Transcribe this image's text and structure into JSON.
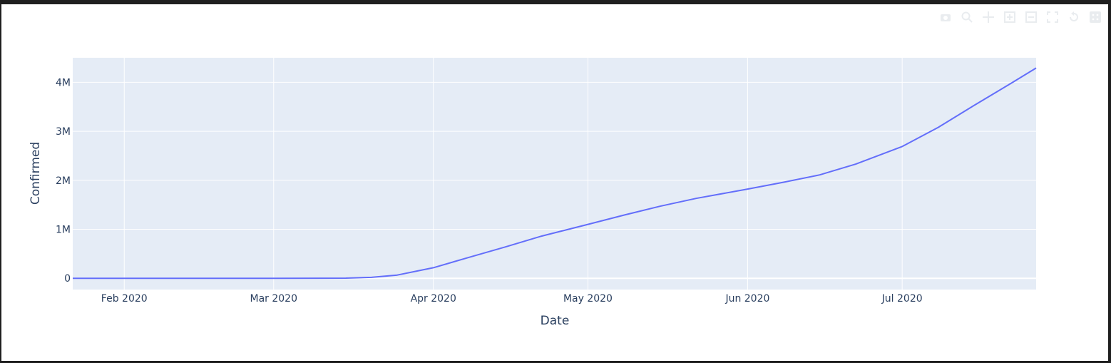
{
  "toolbar": {
    "icons": [
      "camera-icon",
      "zoom-icon",
      "pan-icon",
      "zoom-in-icon",
      "zoom-out-icon",
      "autoscale-icon",
      "reset-axes-icon",
      "plotly-logo-icon"
    ]
  },
  "chart_data": {
    "type": "line",
    "title": "",
    "xlabel": "Date",
    "ylabel": "Confirmed",
    "xlim": [
      "2020-01-22",
      "2020-07-27"
    ],
    "ylim": [
      -230000,
      4500000
    ],
    "x_ticks": [
      {
        "date": "2020-02-01",
        "label": "Feb 2020"
      },
      {
        "date": "2020-03-01",
        "label": "Mar 2020"
      },
      {
        "date": "2020-04-01",
        "label": "Apr 2020"
      },
      {
        "date": "2020-05-01",
        "label": "May 2020"
      },
      {
        "date": "2020-06-01",
        "label": "Jun 2020"
      },
      {
        "date": "2020-07-01",
        "label": "Jul 2020"
      }
    ],
    "y_ticks": [
      {
        "value": 0,
        "label": "0"
      },
      {
        "value": 1000000,
        "label": "1M"
      },
      {
        "value": 2000000,
        "label": "2M"
      },
      {
        "value": 3000000,
        "label": "3M"
      },
      {
        "value": 4000000,
        "label": "4M"
      }
    ],
    "grid": true,
    "colors": {
      "line": "#636efa",
      "plot_bg": "#e5ecf6",
      "grid": "#ffffff",
      "zero_line": "#ffffff",
      "text": "#2a3f5f"
    },
    "series": [
      {
        "x": [
          "2020-01-22",
          "2020-02-01",
          "2020-02-15",
          "2020-03-01",
          "2020-03-10",
          "2020-03-15",
          "2020-03-20",
          "2020-03-25",
          "2020-04-01",
          "2020-04-08",
          "2020-04-15",
          "2020-04-22",
          "2020-05-01",
          "2020-05-08",
          "2020-05-15",
          "2020-05-22",
          "2020-06-01",
          "2020-06-08",
          "2020-06-15",
          "2020-06-22",
          "2020-07-01",
          "2020-07-08",
          "2020-07-15",
          "2020-07-22",
          "2020-07-27"
        ],
        "y": [
          1,
          8,
          15,
          75,
          1000,
          3500,
          19000,
          65000,
          215000,
          430000,
          640000,
          860000,
          1100000,
          1290000,
          1470000,
          1630000,
          1820000,
          1960000,
          2110000,
          2330000,
          2690000,
          3080000,
          3530000,
          3970000,
          4290000
        ]
      }
    ]
  }
}
